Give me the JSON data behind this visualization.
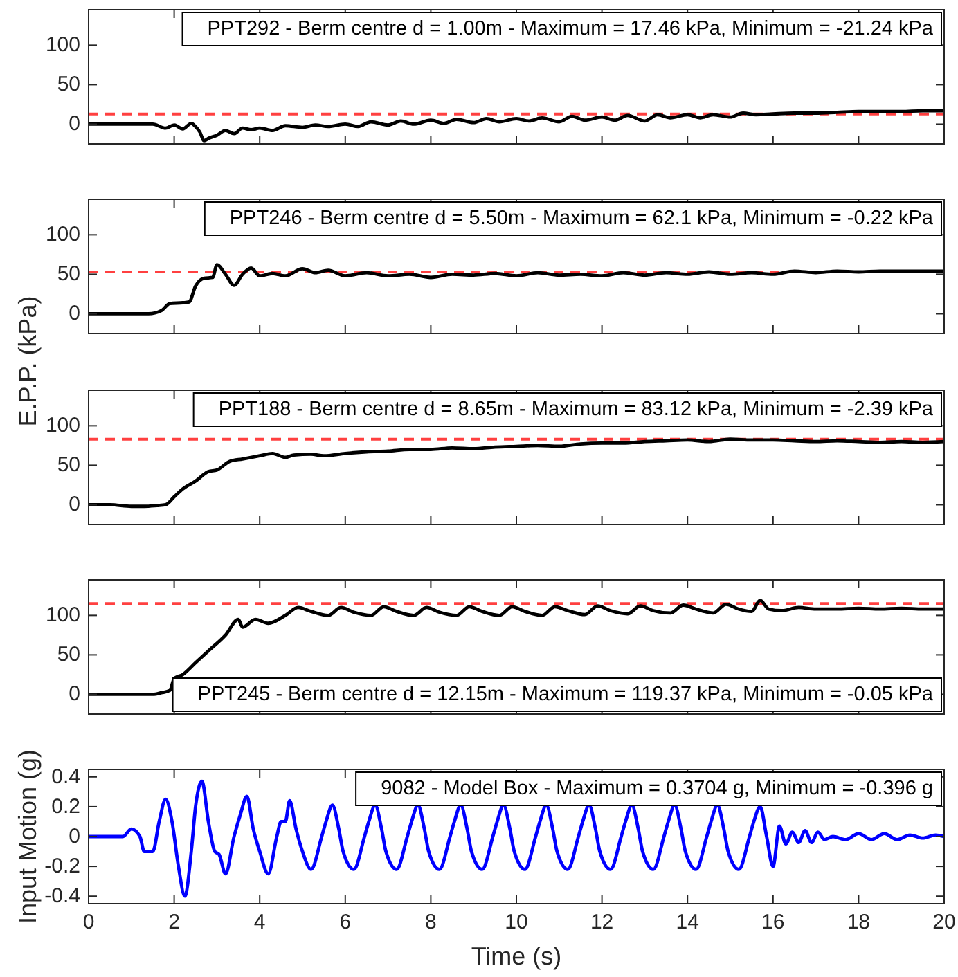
{
  "chart_data": [
    {
      "type": "line",
      "annotations": [
        "PPT292 - Berm centre d = 1.00m  - Maximum = 17.46 kPa, Minimum = -21.24 kPa"
      ],
      "xlim": [
        0,
        20
      ],
      "xticks": [
        0,
        2,
        4,
        6,
        8,
        10,
        12,
        14,
        16,
        18,
        20
      ],
      "ylim": [
        -25,
        145
      ],
      "yticks": [
        0,
        50,
        100
      ],
      "tick_labels": "y",
      "ref_lines": [
        {
          "axis": "y",
          "value": 13,
          "color": "#ff4040",
          "line_style": "dashed"
        }
      ],
      "series": [
        {
          "color": "#000000",
          "x": [
            0,
            1,
            1.5,
            1.8,
            2.0,
            2.2,
            2.4,
            2.5,
            2.6,
            2.7,
            2.8,
            3.0,
            3.2,
            3.4,
            3.6,
            3.8,
            4.0,
            4.3,
            4.6,
            5.0,
            5.3,
            5.6,
            6.0,
            6.3,
            6.6,
            7.0,
            7.3,
            7.6,
            8.0,
            8.3,
            8.6,
            9.0,
            9.3,
            9.6,
            10.0,
            10.3,
            10.6,
            11.0,
            11.3,
            11.6,
            12.0,
            12.3,
            12.6,
            13.0,
            13.3,
            13.6,
            14.0,
            14.3,
            14.6,
            15.0,
            15.3,
            15.6,
            16.0,
            16.5,
            17,
            17.5,
            18,
            18.5,
            19,
            19.5,
            20
          ],
          "values": [
            0,
            0,
            0,
            -5,
            -1,
            -6,
            1,
            -3,
            -10,
            -21,
            -18,
            -14,
            -8,
            -12,
            -5,
            -7,
            -5,
            -8,
            -2,
            -4,
            -1,
            -3,
            0,
            -3,
            3,
            -1,
            4,
            0,
            5,
            1,
            6,
            2,
            7,
            3,
            7,
            4,
            8,
            3,
            10,
            5,
            9,
            5,
            11,
            4,
            12,
            8,
            12,
            8,
            12,
            9,
            14,
            12,
            13,
            14,
            14,
            15,
            16,
            16,
            16,
            17,
            17
          ]
        }
      ]
    },
    {
      "type": "line",
      "ylabel": "E.P.P. (kPa)",
      "annotations": [
        "PPT246 - Berm centre d = 5.50m - Maximum = 62.1 kPa, Minimum = -0.22 kPa"
      ],
      "xlim": [
        0,
        20
      ],
      "xticks": [
        0,
        2,
        4,
        6,
        8,
        10,
        12,
        14,
        16,
        18,
        20
      ],
      "ylim": [
        -25,
        145
      ],
      "yticks": [
        0,
        50,
        100
      ],
      "tick_labels": "y",
      "ref_lines": [
        {
          "axis": "y",
          "value": 53,
          "color": "#ff4040",
          "line_style": "dashed"
        }
      ],
      "series": [
        {
          "color": "#000000",
          "x": [
            0,
            1.0,
            1.4,
            1.7,
            1.9,
            2.2,
            2.35,
            2.5,
            2.7,
            2.9,
            3.0,
            3.2,
            3.4,
            3.6,
            3.8,
            4.0,
            4.3,
            4.6,
            5.0,
            5.3,
            5.6,
            6.0,
            6.5,
            7,
            7.5,
            8,
            8.5,
            9,
            9.5,
            10,
            10.5,
            11,
            11.5,
            12,
            12.5,
            13,
            13.5,
            14,
            14.5,
            15,
            15.5,
            16,
            16.5,
            17,
            17.5,
            18,
            18.5,
            19,
            19.5,
            20
          ],
          "values": [
            0,
            0,
            0,
            4,
            13,
            14,
            15,
            35,
            45,
            46,
            62,
            50,
            36,
            50,
            58,
            48,
            51,
            48,
            57,
            52,
            55,
            48,
            52,
            48,
            50,
            46,
            50,
            49,
            51,
            48,
            52,
            49,
            50,
            48,
            52,
            49,
            52,
            50,
            53,
            50,
            52,
            50,
            54,
            52,
            54,
            53,
            54,
            54,
            54,
            54
          ]
        }
      ]
    },
    {
      "type": "line",
      "annotations": [
        "PPT188 - Berm centre d = 8.65m - Maximum = 83.12 kPa, Minimum = -2.39 kPa"
      ],
      "xlim": [
        0,
        20
      ],
      "xticks": [
        0,
        2,
        4,
        6,
        8,
        10,
        12,
        14,
        16,
        18,
        20
      ],
      "ylim": [
        -25,
        145
      ],
      "yticks": [
        0,
        50,
        100
      ],
      "tick_labels": "y",
      "ref_lines": [
        {
          "axis": "y",
          "value": 83,
          "color": "#ff4040",
          "line_style": "dashed"
        }
      ],
      "series": [
        {
          "color": "#000000",
          "x": [
            0,
            0.5,
            1.0,
            1.3,
            1.6,
            1.8,
            2.0,
            2.2,
            2.5,
            2.8,
            3.0,
            3.3,
            3.6,
            4.0,
            4.3,
            4.6,
            4.8,
            5.2,
            5.5,
            6.0,
            6.5,
            7.0,
            7.5,
            8.0,
            8.5,
            9.0,
            9.5,
            10.0,
            10.5,
            11,
            11.5,
            12,
            12.5,
            13,
            13.5,
            14,
            14.5,
            15,
            15.5,
            16,
            16.5,
            17,
            17.5,
            18,
            18.5,
            19,
            19.5,
            20
          ],
          "values": [
            0,
            0,
            -2,
            -2,
            -1,
            0,
            10,
            20,
            30,
            42,
            44,
            55,
            58,
            62,
            65,
            60,
            63,
            64,
            62,
            65,
            67,
            68,
            70,
            70,
            72,
            71,
            73,
            74,
            75,
            74,
            77,
            78,
            78,
            80,
            81,
            82,
            80,
            83,
            82,
            82,
            81,
            80,
            81,
            80,
            79,
            80,
            79,
            80
          ]
        }
      ]
    },
    {
      "type": "line",
      "annotations": [
        "PPT245 - Berm centre d = 12.15m - Maximum = 119.37 kPa, Minimum = -0.05 kPa"
      ],
      "xlim": [
        0,
        20
      ],
      "xticks": [
        0,
        2,
        4,
        6,
        8,
        10,
        12,
        14,
        16,
        18,
        20
      ],
      "ylim": [
        -25,
        145
      ],
      "yticks": [
        0,
        50,
        100
      ],
      "tick_labels": "y",
      "ref_lines": [
        {
          "axis": "y",
          "value": 115,
          "color": "#ff4040",
          "line_style": "dashed"
        }
      ],
      "series": [
        {
          "color": "#000000",
          "x": [
            0,
            1.0,
            1.5,
            1.7,
            1.9,
            2.0,
            2.2,
            2.5,
            2.8,
            3.2,
            3.5,
            3.6,
            3.9,
            4.2,
            4.6,
            4.9,
            5.2,
            5.6,
            5.9,
            6.2,
            6.6,
            6.9,
            7.2,
            7.6,
            7.9,
            8.2,
            8.6,
            8.9,
            9.2,
            9.6,
            9.9,
            10.2,
            10.6,
            10.9,
            11.2,
            11.6,
            11.9,
            12.2,
            12.6,
            12.9,
            13.2,
            13.6,
            13.9,
            14.2,
            14.6,
            14.9,
            15.2,
            15.5,
            15.7,
            15.9,
            16.2,
            16.6,
            17,
            17.5,
            18,
            18.5,
            19,
            19.5,
            20
          ],
          "values": [
            0,
            0,
            0,
            2,
            5,
            20,
            25,
            40,
            55,
            75,
            95,
            85,
            95,
            90,
            100,
            110,
            105,
            100,
            110,
            104,
            100,
            111,
            105,
            100,
            110,
            104,
            100,
            111,
            105,
            100,
            111,
            105,
            100,
            111,
            106,
            101,
            112,
            106,
            102,
            112,
            106,
            103,
            113,
            108,
            103,
            114,
            108,
            105,
            119,
            108,
            106,
            110,
            108,
            108,
            109,
            108,
            109,
            108,
            108
          ]
        }
      ]
    },
    {
      "type": "line",
      "ylabel": "Input Motion (g)",
      "xlabel": "Time (s)",
      "annotations": [
        "9082 - Model Box - Maximum = 0.3704 g, Minimum = -0.396 g"
      ],
      "xlim": [
        0,
        20
      ],
      "xticks": [
        0,
        2,
        4,
        6,
        8,
        10,
        12,
        14,
        16,
        18,
        20
      ],
      "ylim": [
        -0.45,
        0.45
      ],
      "yticks": [
        -0.4,
        -0.2,
        0,
        0.2,
        0.4
      ],
      "series": [
        {
          "color": "#0000ff",
          "x": [
            0,
            0.8,
            1.0,
            1.2,
            1.3,
            1.5,
            1.65,
            1.8,
            1.95,
            2.1,
            2.25,
            2.4,
            2.5,
            2.65,
            2.8,
            2.95,
            3.05,
            3.2,
            3.4,
            3.55,
            3.7,
            3.85,
            4.0,
            4.2,
            4.4,
            4.5,
            4.6,
            4.7,
            4.85,
            5.0,
            5.2,
            5.45,
            5.55,
            5.7,
            5.85,
            5.95,
            6.2,
            6.45,
            6.55,
            6.7,
            6.85,
            6.95,
            7.2,
            7.45,
            7.55,
            7.7,
            7.85,
            7.95,
            8.2,
            8.45,
            8.55,
            8.7,
            8.85,
            8.95,
            9.2,
            9.45,
            9.55,
            9.7,
            9.85,
            9.95,
            10.2,
            10.45,
            10.55,
            10.7,
            10.85,
            10.95,
            11.2,
            11.45,
            11.55,
            11.7,
            11.85,
            11.95,
            12.2,
            12.45,
            12.55,
            12.7,
            12.85,
            12.95,
            13.2,
            13.45,
            13.55,
            13.7,
            13.85,
            13.95,
            14.2,
            14.45,
            14.55,
            14.7,
            14.85,
            14.95,
            15.2,
            15.45,
            15.55,
            15.7,
            15.85,
            16.0,
            16.15,
            16.3,
            16.45,
            16.6,
            16.75,
            16.9,
            17.05,
            17.2,
            17.4,
            17.7,
            18.0,
            18.3,
            18.6,
            18.9,
            19.2,
            19.5,
            19.8,
            20
          ],
          "values": [
            0,
            0,
            0.05,
            0,
            -0.1,
            -0.1,
            0.1,
            0.25,
            0.1,
            -0.2,
            -0.4,
            -0.1,
            0.2,
            0.37,
            0.1,
            -0.1,
            -0.12,
            -0.25,
            0.0,
            0.15,
            0.27,
            0.05,
            -0.1,
            -0.25,
            0.0,
            0.1,
            0.1,
            0.24,
            0.05,
            -0.1,
            -0.22,
            0.0,
            0.1,
            0.21,
            0.05,
            -0.1,
            -0.22,
            0.0,
            0.1,
            0.21,
            0.05,
            -0.1,
            -0.22,
            0.0,
            0.1,
            0.21,
            0.05,
            -0.1,
            -0.22,
            0.0,
            0.1,
            0.21,
            0.05,
            -0.1,
            -0.22,
            0.0,
            0.1,
            0.21,
            0.05,
            -0.1,
            -0.22,
            0.0,
            0.1,
            0.21,
            0.05,
            -0.1,
            -0.22,
            0.0,
            0.1,
            0.21,
            0.05,
            -0.1,
            -0.22,
            0.0,
            0.1,
            0.21,
            0.05,
            -0.1,
            -0.22,
            0.0,
            0.1,
            0.21,
            0.05,
            -0.1,
            -0.22,
            0.0,
            0.1,
            0.21,
            0.05,
            -0.1,
            -0.22,
            0.0,
            0.1,
            0.2,
            0.0,
            -0.2,
            0.07,
            -0.05,
            0.03,
            -0.04,
            0.04,
            -0.04,
            0.03,
            -0.02,
            0.0,
            -0.02,
            0.02,
            -0.02,
            0.02,
            -0.02,
            0.01,
            -0.01,
            0.01,
            0.0
          ]
        }
      ]
    }
  ]
}
